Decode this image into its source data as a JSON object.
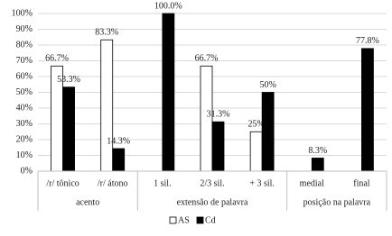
{
  "chart_data": {
    "type": "bar",
    "groups": [
      {
        "name": "acento",
        "categories": [
          "/r/ tônico",
          "/r/ átono"
        ]
      },
      {
        "name": "extensão de palavra",
        "categories": [
          "1 sil.",
          "2/3 sil.",
          "+ 3 sil."
        ]
      },
      {
        "name": "posição na palavra",
        "categories": [
          "medial",
          "final"
        ]
      }
    ],
    "series": [
      {
        "name": "AS",
        "color": "#ffffff",
        "values": [
          66.7,
          83.3,
          null,
          66.7,
          25,
          null,
          null
        ],
        "value_labels": [
          "66.7%",
          "83.3%",
          null,
          "66.7%",
          "25%",
          null,
          null
        ]
      },
      {
        "name": "Cd",
        "color": "#000000",
        "values": [
          53.3,
          14.3,
          100,
          31.3,
          50,
          8.3,
          77.8
        ],
        "value_labels": [
          "53.3%",
          "14.3%",
          "100.0%",
          "31.3%",
          "50%",
          "8.3%",
          "77.8%"
        ]
      }
    ],
    "ylim": [
      0,
      100
    ],
    "yticks": [
      {
        "value": 0,
        "label": "0%"
      },
      {
        "value": 10,
        "label": "10%"
      },
      {
        "value": 20,
        "label": "20%"
      },
      {
        "value": 30,
        "label": "30%"
      },
      {
        "value": 40,
        "label": "40%"
      },
      {
        "value": 50,
        "label": "50%"
      },
      {
        "value": 60,
        "label": "60%"
      },
      {
        "value": 70,
        "label": "70%"
      },
      {
        "value": 80,
        "label": "80%"
      },
      {
        "value": 90,
        "label": "90%"
      },
      {
        "value": 100,
        "label": "100%"
      }
    ],
    "grid": true
  }
}
